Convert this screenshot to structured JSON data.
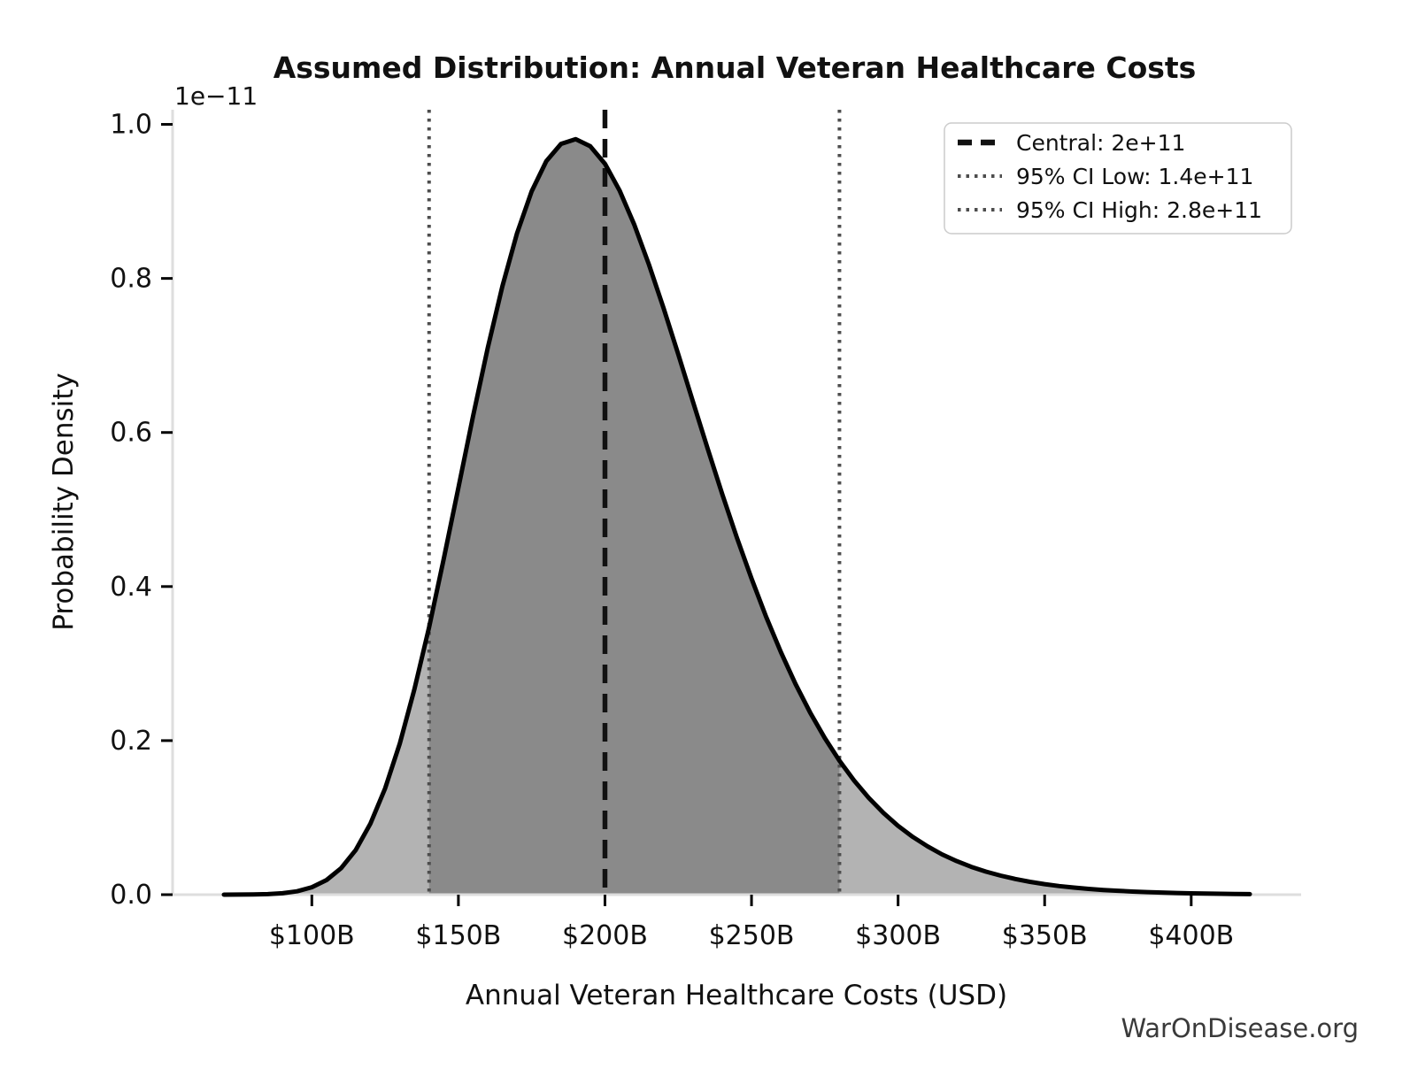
{
  "chart_data": {
    "type": "area",
    "title": "Assumed Distribution: Annual Veteran Healthcare Costs",
    "xlabel": "Annual Veteran Healthcare Costs (USD)",
    "ylabel": "Probability Density",
    "watermark": "WarOnDisease.org",
    "x_axis": {
      "unit": "USD billions",
      "range_billions": [
        52.5,
        437.5
      ],
      "ticks": [
        {
          "value": 100,
          "label": "$100B"
        },
        {
          "value": 150,
          "label": "$150B"
        },
        {
          "value": 200,
          "label": "$200B"
        },
        {
          "value": 250,
          "label": "$250B"
        },
        {
          "value": 300,
          "label": "$300B"
        },
        {
          "value": 350,
          "label": "$350B"
        },
        {
          "value": 400,
          "label": "$400B"
        }
      ]
    },
    "y_axis": {
      "unit": "probability density (1e-11)",
      "offset_label": "1e−11",
      "range_1e11": [
        0,
        1.019
      ],
      "ticks": [
        {
          "value": 0.0,
          "label": "0.0"
        },
        {
          "value": 0.2,
          "label": "0.2"
        },
        {
          "value": 0.4,
          "label": "0.4"
        },
        {
          "value": 0.6,
          "label": "0.6"
        },
        {
          "value": 0.8,
          "label": "0.8"
        },
        {
          "value": 1.0,
          "label": "1.0"
        }
      ]
    },
    "markers": {
      "central_billions": 200,
      "ci_low_billions": 140,
      "ci_high_billions": 280,
      "central_value": "2e+11",
      "ci_low_value": "1.4e+11",
      "ci_high_value": "2.8e+11"
    },
    "legend": [
      {
        "label": "Central: 2e+11",
        "style": "dashed",
        "color": "#111111"
      },
      {
        "label": "95% CI Low: 1.4e+11",
        "style": "dotted",
        "color": "#4d4d4d"
      },
      {
        "label": "95% CI High: 2.8e+11",
        "style": "dotted",
        "color": "#4d4d4d"
      }
    ],
    "curve": {
      "x_billions": [
        70,
        75,
        80,
        85,
        90,
        95,
        100,
        105,
        110,
        115,
        120,
        125,
        130,
        135,
        140,
        145,
        150,
        155,
        160,
        165,
        170,
        175,
        180,
        185,
        190,
        195,
        200,
        205,
        210,
        215,
        220,
        225,
        230,
        235,
        240,
        245,
        250,
        255,
        260,
        265,
        270,
        275,
        280,
        285,
        290,
        295,
        300,
        305,
        310,
        315,
        320,
        325,
        330,
        335,
        340,
        345,
        350,
        355,
        360,
        365,
        370,
        375,
        380,
        385,
        390,
        395,
        400,
        405,
        410,
        415,
        420
      ],
      "density_1e11": [
        0.0,
        0.0001,
        0.0002,
        0.0007,
        0.0018,
        0.0044,
        0.0096,
        0.0189,
        0.0344,
        0.0581,
        0.0922,
        0.138,
        0.1962,
        0.2667,
        0.3472,
        0.4357,
        0.5283,
        0.6209,
        0.7095,
        0.7899,
        0.8585,
        0.9132,
        0.9522,
        0.9746,
        0.9807,
        0.9716,
        0.9488,
        0.9141,
        0.8698,
        0.8182,
        0.7614,
        0.7015,
        0.6404,
        0.5795,
        0.5203,
        0.4636,
        0.4102,
        0.3606,
        0.315,
        0.2737,
        0.2364,
        0.2032,
        0.1739,
        0.1481,
        0.1257,
        0.1062,
        0.0894,
        0.075,
        0.0628,
        0.0523,
        0.0435,
        0.0361,
        0.0299,
        0.0247,
        0.0203,
        0.0167,
        0.0137,
        0.0112,
        0.0092,
        0.0075,
        0.0061,
        0.005,
        0.004,
        0.0033,
        0.0027,
        0.0022,
        0.0017,
        0.0014,
        0.0011,
        0.0009,
        0.0007
      ]
    },
    "colors": {
      "curve": "#000000",
      "fill_light": "#b3b3b3",
      "fill_ci": "#8a8a8a",
      "central_line": "#111111",
      "ci_line": "#4d4d4d",
      "spine": "#dedede",
      "tick": "#000000",
      "legend_border": "#cccccc",
      "watermark": "#3a3a3a"
    }
  }
}
